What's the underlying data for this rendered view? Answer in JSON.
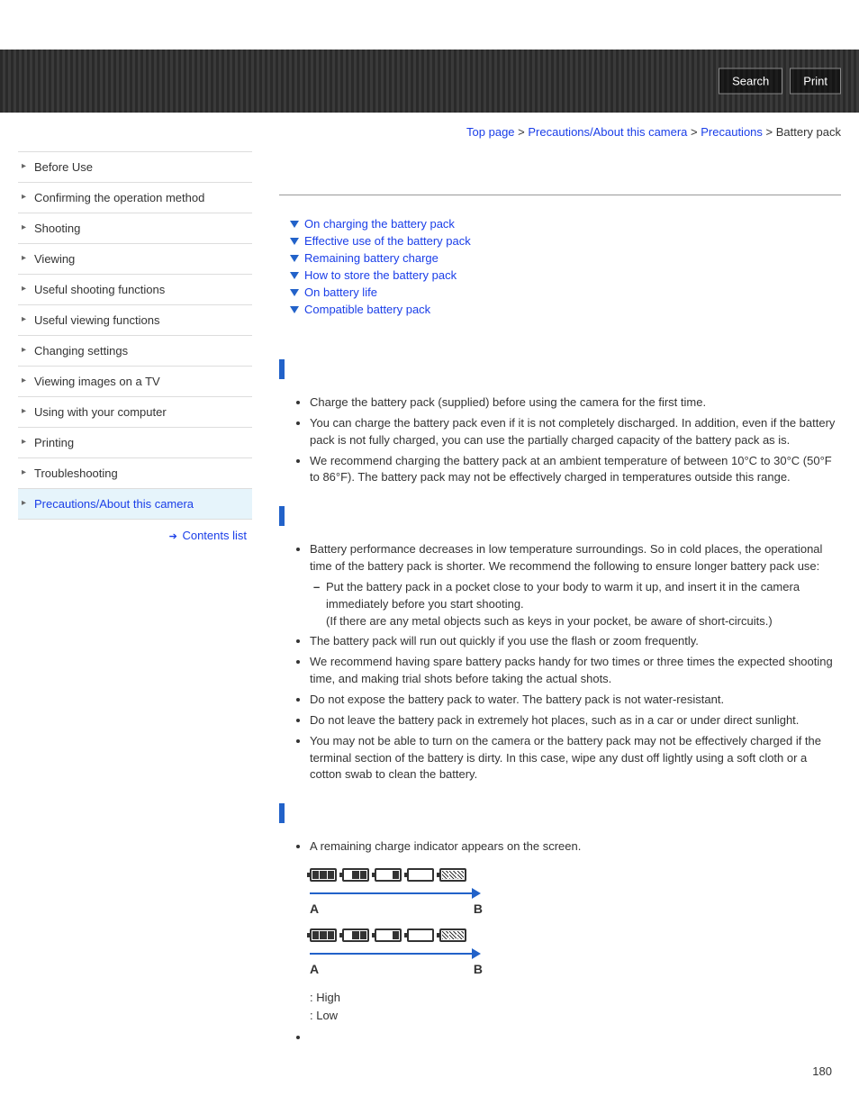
{
  "header": {
    "search": "Search",
    "print": "Print"
  },
  "breadcrumb": {
    "top": "Top page",
    "l1": "Precautions/About this camera",
    "l2": "Precautions",
    "current": "Battery pack",
    "sep": " > "
  },
  "sidebar": {
    "items": [
      "Before Use",
      "Confirming the operation method",
      "Shooting",
      "Viewing",
      "Useful shooting functions",
      "Useful viewing functions",
      "Changing settings",
      "Viewing images on a TV",
      "Using with your computer",
      "Printing",
      "Troubleshooting",
      "Precautions/About this camera"
    ],
    "active_index": 11,
    "contents_list": "Contents list"
  },
  "toc": [
    "On charging the battery pack",
    "Effective use of the battery pack",
    "Remaining battery charge",
    "How to store the battery pack",
    "On battery life",
    "Compatible battery pack"
  ],
  "sections": {
    "charging": [
      "Charge the battery pack (supplied) before using the camera for the first time.",
      "You can charge the battery pack even if it is not completely discharged. In addition, even if the battery pack is not fully charged, you can use the partially charged capacity of the battery pack as is.",
      "We recommend charging the battery pack at an ambient temperature of between 10°C to 30°C (50°F to 86°F). The battery pack may not be effectively charged in temperatures outside this range."
    ],
    "effective_first": "Battery performance decreases in low temperature surroundings. So in cold places, the operational time of the battery pack is shorter. We recommend the following to ensure longer battery pack use:",
    "effective_sub": "Put the battery pack in a pocket close to your body to warm it up, and insert it in the camera immediately before you start shooting.",
    "effective_sub2": "(If there are any metal objects such as keys in your pocket, be aware of short-circuits.)",
    "effective_rest": [
      "The battery pack will run out quickly if you use the flash or zoom frequently.",
      "We recommend having spare battery packs handy for two times or three times the expected shooting time, and making trial shots before taking the actual shots.",
      "Do not expose the battery pack to water. The battery pack is not water-resistant.",
      "Do not leave the battery pack in extremely hot places, such as in a car or under direct sunlight.",
      "You may not be able to turn on the camera or the battery pack may not be effectively charged if the terminal section of the battery is dirty. In this case, wipe any dust off lightly using a soft cloth or a cotton swab to clean the battery."
    ],
    "remaining": "A remaining charge indicator appears on the screen.",
    "label_a": "A",
    "label_b": "B",
    "high": ": High",
    "low": ": Low"
  },
  "colors": {
    "link": "#1a3ee8",
    "accent": "#2262c9",
    "active_bg": "#e6f4fb"
  },
  "page_number": "180"
}
